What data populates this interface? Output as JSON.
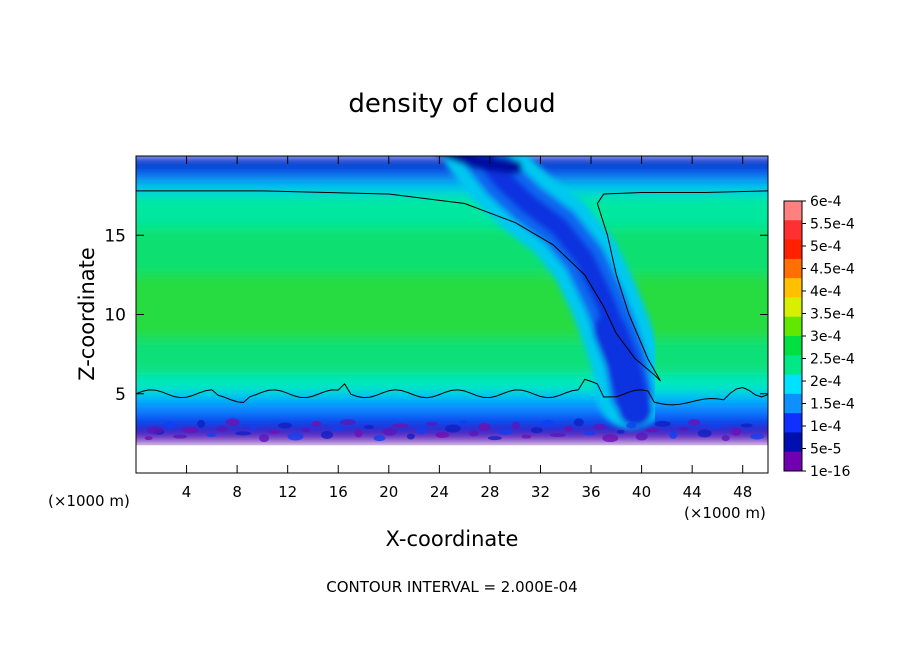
{
  "chart_data": {
    "type": "heatmap",
    "title": "density of cloud",
    "xlabel": "X-coordinate",
    "ylabel": "Z-coordinate",
    "x_unit_left": "(×1000 m)",
    "x_unit_right": "(×1000 m)",
    "xlim": [
      0,
      50
    ],
    "ylim": [
      0,
      20
    ],
    "xticks": [
      4,
      8,
      12,
      16,
      20,
      24,
      28,
      32,
      36,
      40,
      44,
      48
    ],
    "yticks": [
      5,
      10,
      15
    ],
    "footer": "CONTOUR INTERVAL = 2.000E-04",
    "contour_level": "2e-4",
    "colorbar": {
      "labels": [
        "6e-4",
        "5.5e-4",
        "5e-4",
        "4.5e-4",
        "4e-4",
        "3.5e-4",
        "3e-4",
        "2.5e-4",
        "2e-4",
        "1.5e-4",
        "1e-4",
        "5e-5",
        "1e-16"
      ],
      "colors": [
        "#ff8080",
        "#ff3030",
        "#ff2000",
        "#ff7000",
        "#ffc000",
        "#d8f000",
        "#60e800",
        "#00e040",
        "#00e888",
        "#00e0ff",
        "#1090ff",
        "#1030ff",
        "#0010b0",
        "#7000b0"
      ]
    },
    "field": {
      "description_values": {
        "cloud_base_km": 2,
        "contour_lower_km": 5,
        "contour_upper_km": 17.8,
        "peak_band_km": 10,
        "plume_x_km": 38
      }
    }
  }
}
